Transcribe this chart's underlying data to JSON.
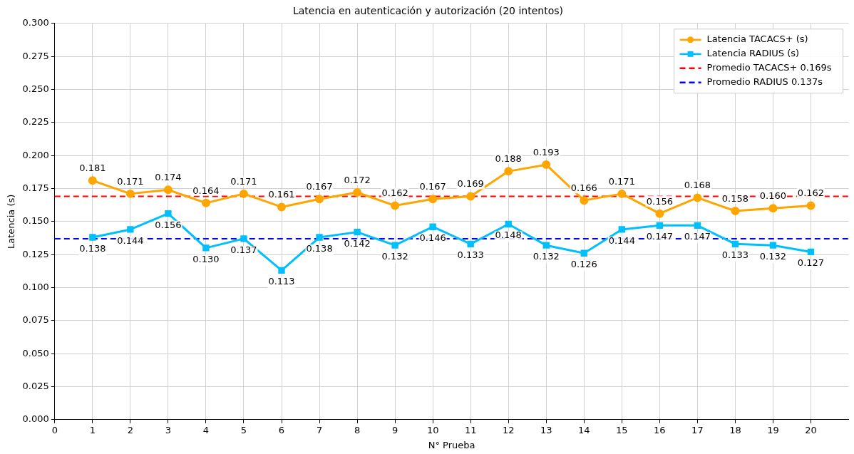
{
  "chart_data": {
    "type": "line",
    "title": "Latencia en autenticación y autorización (20 intentos)",
    "xlabel": "N° Prueba",
    "ylabel": "Latencia (s)",
    "x": [
      1,
      2,
      3,
      4,
      5,
      6,
      7,
      8,
      9,
      10,
      11,
      12,
      13,
      14,
      15,
      16,
      17,
      18,
      19,
      20
    ],
    "series": [
      {
        "name": "Latencia TACACS+ (s)",
        "color": "#ffa500",
        "marker": "circle",
        "values": [
          0.181,
          0.171,
          0.174,
          0.164,
          0.171,
          0.161,
          0.167,
          0.172,
          0.162,
          0.167,
          0.169,
          0.188,
          0.193,
          0.166,
          0.171,
          0.156,
          0.168,
          0.158,
          0.16,
          0.162
        ],
        "value_labels": [
          "0.181",
          "0.171",
          "0.174",
          "0.164",
          "0.171",
          "0.161",
          "0.167",
          "0.172",
          "0.162",
          "0.167",
          "0.169",
          "0.188",
          "0.193",
          "0.166",
          "0.171",
          "0.156",
          "0.168",
          "0.158",
          "0.160",
          "0.162"
        ]
      },
      {
        "name": "Latencia RADIUS (s)",
        "color": "#00bfff",
        "marker": "square",
        "values": [
          0.138,
          0.144,
          0.156,
          0.13,
          0.137,
          0.113,
          0.138,
          0.142,
          0.132,
          0.146,
          0.133,
          0.148,
          0.132,
          0.126,
          0.144,
          0.147,
          0.147,
          0.133,
          0.132,
          0.127
        ],
        "value_labels": [
          "0.138",
          "0.144",
          "0.156",
          "0.130",
          "0.137",
          "0.113",
          "0.138",
          "0.142",
          "0.132",
          "0.146",
          "0.133",
          "0.148",
          "0.132",
          "0.126",
          "0.144",
          "0.147",
          "0.147",
          "0.133",
          "0.132",
          "0.127"
        ]
      }
    ],
    "ref_lines": [
      {
        "axis": "y",
        "value": 0.169,
        "label": "Promedio TACACS+ 0.169s",
        "color": "#ff0000",
        "line_style": "dashed"
      },
      {
        "axis": "y",
        "value": 0.137,
        "label": "Promedio RADIUS 0.137s",
        "color": "#0000ff",
        "line_style": "dashed"
      }
    ],
    "xlim": [
      0,
      21
    ],
    "xticks": [
      0,
      1,
      2,
      3,
      4,
      5,
      6,
      7,
      8,
      9,
      10,
      11,
      12,
      13,
      14,
      15,
      16,
      17,
      18,
      19,
      20
    ],
    "ylim": [
      0,
      0.3
    ],
    "yticks": [
      {
        "value": 0,
        "label": "0.000"
      },
      {
        "value": 0.025,
        "label": "0.025"
      },
      {
        "value": 0.05,
        "label": "0.050"
      },
      {
        "value": 0.075,
        "label": "0.075"
      },
      {
        "value": 0.1,
        "label": "0.100"
      },
      {
        "value": 0.125,
        "label": "0.125"
      },
      {
        "value": 0.15,
        "label": "0.150"
      },
      {
        "value": 0.175,
        "label": "0.175"
      },
      {
        "value": 0.2,
        "label": "0.200"
      },
      {
        "value": 0.225,
        "label": "0.225"
      },
      {
        "value": 0.25,
        "label": "0.250"
      },
      {
        "value": 0.275,
        "label": "0.275"
      },
      {
        "value": 0.3,
        "label": "0.300"
      }
    ],
    "grid": true,
    "legend": "top right",
    "line_style": "solid"
  }
}
